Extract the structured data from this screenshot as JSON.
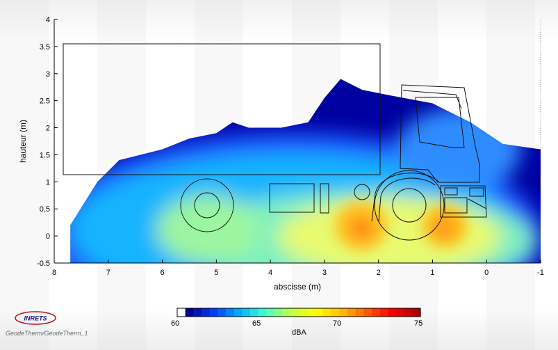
{
  "chart_data": {
    "type": "heatmap",
    "xlabel": "abscisse (m)",
    "ylabel": "hauteur (m)",
    "xlim": [
      8,
      -1
    ],
    "ylim": [
      -0.5,
      4
    ],
    "x_ticks": [
      "8",
      "7",
      "6",
      "5",
      "4",
      "3",
      "2",
      "1",
      "0",
      "-1"
    ],
    "y_ticks": [
      "-0.5",
      "0",
      "0.5",
      "1",
      "1.5",
      "2",
      "2.5",
      "3",
      "3.5",
      "4"
    ],
    "colorbar": {
      "label": "dBA",
      "range": [
        60,
        75
      ],
      "ticks": [
        "60",
        "65",
        "70",
        "75"
      ],
      "colors": [
        "#ffffff",
        "#00008f",
        "#0040ff",
        "#00b0ff",
        "#40ffd0",
        "#c0ff40",
        "#ffff00",
        "#ffc000",
        "#ff6000",
        "#ff0000",
        "#b00000"
      ]
    },
    "field_hotspots": [
      {
        "x": 2.35,
        "y": 0.15,
        "level": 71.5
      },
      {
        "x": 0.8,
        "y": 0.15,
        "level": 71
      },
      {
        "x": 1.5,
        "y": 0.3,
        "level": 69.5
      },
      {
        "x": 5.0,
        "y": 0.4,
        "level": 66.5
      },
      {
        "x": 2.8,
        "y": 1.9,
        "level": 64
      },
      {
        "x": 6.8,
        "y": 0.6,
        "level": 63
      }
    ],
    "outline_top": [
      [
        7.7,
        0.2
      ],
      [
        7.2,
        1.0
      ],
      [
        6.8,
        1.4
      ],
      [
        6.0,
        1.6
      ],
      [
        5.5,
        1.8
      ],
      [
        5.0,
        1.9
      ],
      [
        4.7,
        2.1
      ],
      [
        4.4,
        2.0
      ],
      [
        3.8,
        2.0
      ],
      [
        3.3,
        2.1
      ],
      [
        3.0,
        2.55
      ],
      [
        2.7,
        2.9
      ],
      [
        2.3,
        2.7
      ],
      [
        1.8,
        2.6
      ],
      [
        1.0,
        2.45
      ],
      [
        0.3,
        2.1
      ],
      [
        -0.3,
        1.7
      ],
      [
        -1.0,
        1.6
      ]
    ],
    "grid": false
  },
  "branding": {
    "logo_text": "INRETS",
    "footer": "GeodeTherm/GeodeTherm_1"
  }
}
